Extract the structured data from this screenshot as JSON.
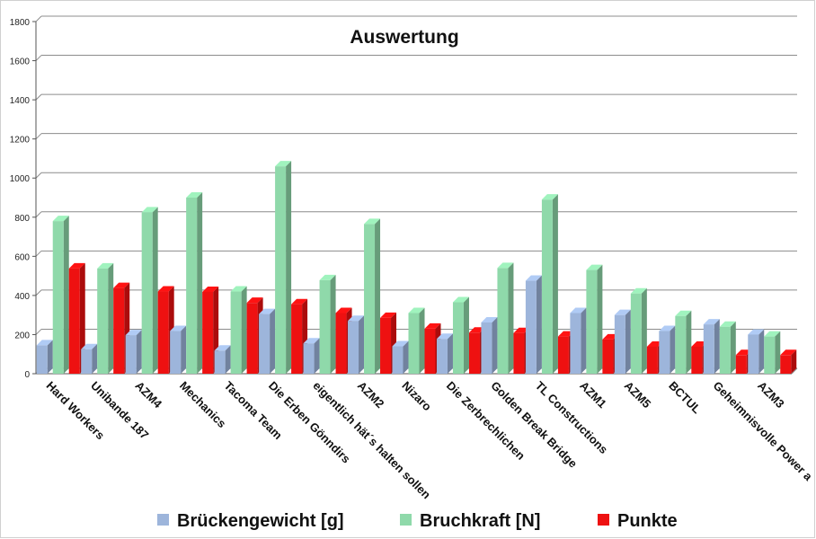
{
  "chart_data": {
    "type": "bar",
    "title": "Auswertung",
    "xlabel": "",
    "ylabel": "",
    "ylim": [
      0,
      1800
    ],
    "yticks": [
      0,
      200,
      400,
      600,
      800,
      1000,
      1200,
      1400,
      1600,
      1800
    ],
    "grid": true,
    "legend_position": "bottom",
    "categories": [
      "Hard Workers",
      "Unibande 187",
      "AZM4",
      "Mechanics",
      "Tacoma Team",
      "Die Erben Gönndirs",
      "eigentlich hät´s halten sollen",
      "AZM2",
      "Nizaro",
      "Die Zerbrechlichen",
      "Golden Break Bridge",
      "TL Constructions",
      "AZM1",
      "AZM5",
      "BCTUL",
      "Geheimnisvolle Power a",
      "AZM3"
    ],
    "series": [
      {
        "name": "Brückengewicht [g]",
        "color": "#9db5db",
        "values": [
          145,
          125,
          197,
          218,
          118,
          305,
          155,
          270,
          140,
          178,
          262,
          475,
          310,
          300,
          218,
          252,
          200
        ]
      },
      {
        "name": "Bruchkraft [N]",
        "color": "#8fd9aa",
        "values": [
          780,
          538,
          825,
          900,
          420,
          1060,
          478,
          765,
          310,
          365,
          540,
          890,
          530,
          410,
          295,
          240,
          190
        ]
      },
      {
        "name": "Punkte",
        "color": "#ee1111",
        "values": [
          538,
          438,
          420,
          418,
          362,
          355,
          310,
          285,
          230,
          210,
          208,
          190,
          175,
          138,
          138,
          95,
          95
        ]
      }
    ]
  }
}
